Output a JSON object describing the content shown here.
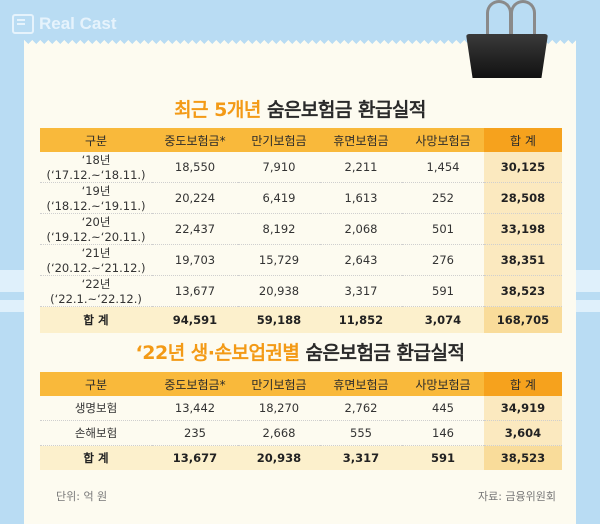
{
  "logo": "Real Cast",
  "title1": {
    "highlight": "최근 5개년",
    "rest": " 숨은보험금 환급실적"
  },
  "title2": {
    "highlight": "‘22년 생·손보업권별",
    "rest": " 숨은보험금 환급실적"
  },
  "table1": {
    "headers": [
      "구분",
      "중도보험금*",
      "만기보험금",
      "휴면보험금",
      "사망보험금",
      "합 계"
    ],
    "rows": [
      [
        "‘18년(‘17.12.~‘18.11.)",
        "18,550",
        "7,910",
        "2,211",
        "1,454",
        "30,125"
      ],
      [
        "‘19년(‘18.12.~‘19.11.)",
        "20,224",
        "6,419",
        "1,613",
        "252",
        "28,508"
      ],
      [
        "‘20년(‘19.12.~‘20.11.)",
        "22,437",
        "8,192",
        "2,068",
        "501",
        "33,198"
      ],
      [
        "‘21년(‘20.12.~‘21.12.)",
        "19,703",
        "15,729",
        "2,643",
        "276",
        "38,351"
      ],
      [
        "‘22년(‘22.1.~‘22.12.)",
        "13,677",
        "20,938",
        "3,317",
        "591",
        "38,523"
      ]
    ],
    "total": [
      "합 계",
      "94,591",
      "59,188",
      "11,852",
      "3,074",
      "168,705"
    ]
  },
  "table2": {
    "headers": [
      "구분",
      "중도보험금*",
      "만기보험금",
      "휴면보험금",
      "사망보험금",
      "합 계"
    ],
    "rows": [
      [
        "생명보험",
        "13,442",
        "18,270",
        "2,762",
        "445",
        "34,919"
      ],
      [
        "손해보험",
        "235",
        "2,668",
        "555",
        "146",
        "3,604"
      ]
    ],
    "total": [
      "합 계",
      "13,677",
      "20,938",
      "3,317",
      "591",
      "38,523"
    ]
  },
  "unit": "단위: 억 원",
  "source": "자료: 금융위원회",
  "colors": {
    "header": "#f9b93b",
    "accent": "#f39a16",
    "background": "#b9dcf3"
  }
}
